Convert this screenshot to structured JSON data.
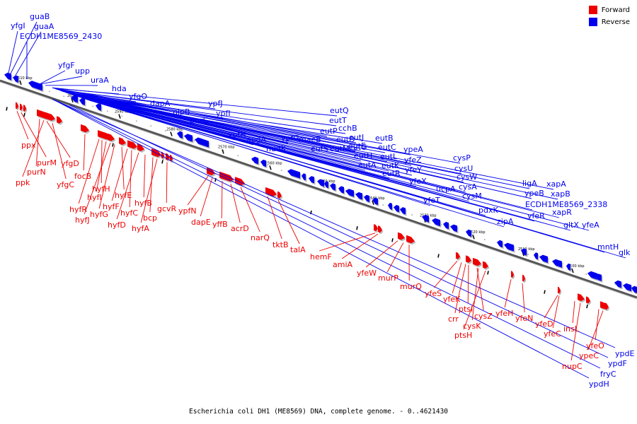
{
  "legend": {
    "forward": "Forward",
    "reverse": "Reverse"
  },
  "colors": {
    "forward": "#ee0000",
    "reverse": "#0000ee",
    "backbone": "#666666"
  },
  "footer": {
    "caption": "Escherichia coli DH1 (ME8569) DNA, complete genome. - 0..4621430"
  },
  "ticks": [
    "2610 kbp",
    "2600 kbp",
    "2590 kbp",
    "2580 kbp",
    "2570 kbp",
    "2560 kbp",
    "2550 kbp",
    "2540 kbp",
    "2530 kbp",
    "2520 kbp",
    "2510 kbp",
    "2500 kbp"
  ],
  "reverse_genes": [
    "yfgI",
    "guaB",
    "guaA",
    "ECDH1ME8569_2430",
    "yfgF",
    "upp",
    "uraA",
    "hda",
    "yfgO",
    "dapA",
    "nlpB",
    "purC",
    "ypfJ",
    "ypfI",
    "ypfH",
    "aegA",
    "nudK",
    "ypfG",
    "maeB",
    "eutS",
    "eutP",
    "eutQ",
    "eutT",
    "cchB",
    "eutD",
    "eutM",
    "eutE",
    "eutJ",
    "eutG",
    "eutH",
    "eutA",
    "eutB",
    "eutC",
    "eutL",
    "eutK",
    "eutR",
    "ypeA",
    "yfeZ",
    "yfeY",
    "yfeX",
    "yfeT",
    "ucpA",
    "cysP",
    "cysU",
    "cysW",
    "cysA",
    "cysM",
    "pdxK",
    "zipA",
    "ligA",
    "ypeB",
    "ECDH1ME8569_2338",
    "yfeR",
    "xapA",
    "xapB",
    "xapR",
    "gltX",
    "yfeA",
    "mntH",
    "glk",
    "ypdE",
    "ypdF",
    "fryC",
    "ypdH"
  ],
  "forward_genes": [
    "ppx",
    "purM",
    "purN",
    "ppk",
    "yfgD",
    "yfgC",
    "focB",
    "hyfH",
    "hyfR",
    "hyfI",
    "hyfJ",
    "hyfG",
    "hyfE",
    "hyfF",
    "hyfC",
    "hyfD",
    "hyfB",
    "bcp",
    "hyfA",
    "gcvR",
    "ypfN",
    "dapE",
    "yffB",
    "acrD",
    "narQ",
    "tktB",
    "talA",
    "hemF",
    "amiA",
    "yfeW",
    "murP",
    "murQ",
    "yfeS",
    "yfeK",
    "ptsI",
    "crr",
    "cysZ",
    "cysK",
    "ptsH",
    "yfeH",
    "yfeN",
    "yfeD",
    "yfeC",
    "insL",
    "nupC",
    "yfeO",
    "ypeC"
  ]
}
